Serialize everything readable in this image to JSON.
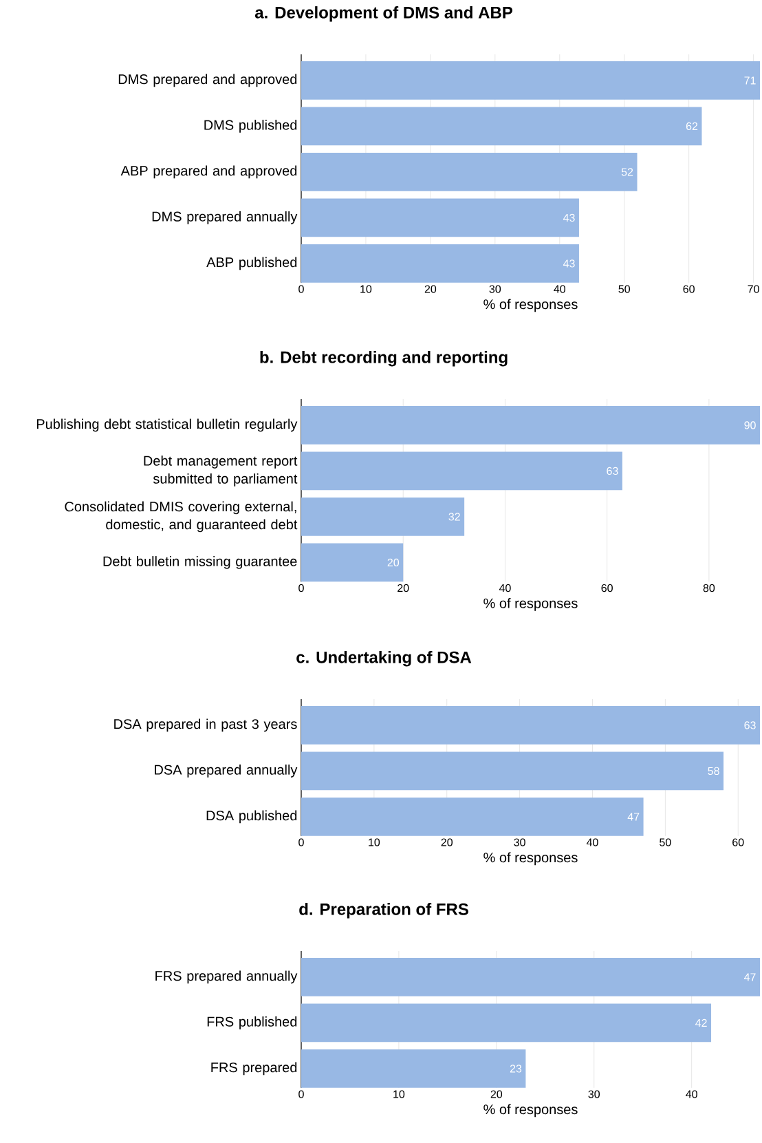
{
  "chart_data": [
    {
      "type": "bar",
      "orientation": "horizontal",
      "title": "**a.  Development of DMS and ABP**",
      "categories": [
        "DMS prepared and approved",
        "DMS published",
        "ABP prepared and approved",
        "DMS prepared annually",
        "ABP published"
      ],
      "values": [
        71,
        62,
        52,
        43,
        43
      ],
      "color": "#98b8e4",
      "xlim": [
        0,
        71
      ],
      "xticks": [
        0,
        10,
        20,
        30,
        40,
        50,
        60,
        70
      ],
      "xlabel": "% of responses",
      "data_labels": true,
      "grid": "x"
    },
    {
      "type": "bar",
      "orientation": "horizontal",
      "title": "**b.  Debt recording and reporting**",
      "categories": [
        "Publishing debt statistical bulletin regularly",
        "Debt management report submitted to parliament",
        "Consolidated DMIS covering external, domestic, and guaranteed debt",
        "Debt bulletin missing guarantee"
      ],
      "values": [
        90,
        63,
        32,
        20
      ],
      "color": "#98b8e4",
      "xlim": [
        0,
        90
      ],
      "xticks": [
        0,
        20,
        40,
        60,
        80
      ],
      "xlabel": "% of responses",
      "data_labels": true,
      "grid": "x"
    },
    {
      "type": "bar",
      "orientation": "horizontal",
      "title": "**c.  Undertaking of DSA**",
      "categories": [
        "DSA prepared in past 3 years",
        "DSA prepared annually",
        "DSA published"
      ],
      "values": [
        63,
        58,
        47
      ],
      "color": "#98b8e4",
      "xlim": [
        0,
        63
      ],
      "xticks": [
        0,
        10,
        20,
        30,
        40,
        50,
        60
      ],
      "xlabel": "% of responses",
      "data_labels": true,
      "grid": "x"
    },
    {
      "type": "bar",
      "orientation": "horizontal",
      "title": "**d.  Preparation of FRS**",
      "categories": [
        "FRS prepared annually",
        "FRS published",
        "FRS prepared"
      ],
      "values": [
        47,
        42,
        23
      ],
      "color": "#98b8e4",
      "xlim": [
        0,
        47
      ],
      "xticks": [
        0,
        10,
        20,
        30,
        40
      ],
      "xlabel": "% of responses",
      "data_labels": true,
      "grid": "x"
    }
  ]
}
